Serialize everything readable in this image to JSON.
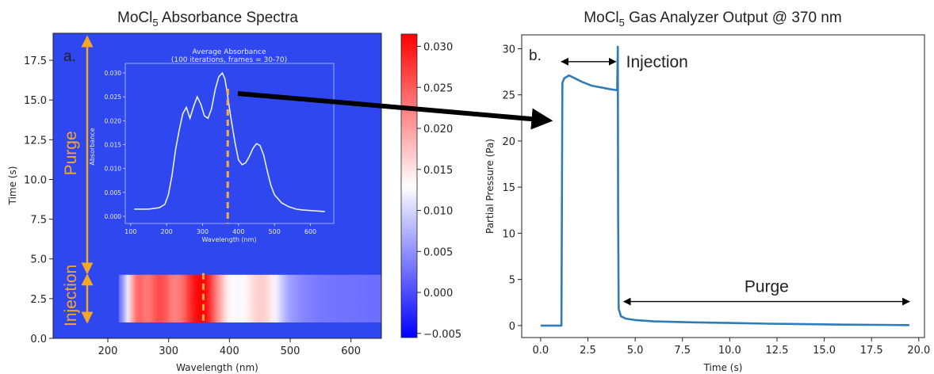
{
  "colors": {
    "background_blue": "#2f47ee",
    "colormap": [
      "#0000ff",
      "#ffffff",
      "#ff0000"
    ],
    "inset_line": "#e9efff",
    "marker": "#f5b041",
    "purge_annotation": "#f5a623",
    "series_b": "#2f7db8",
    "arrow": "#000000"
  },
  "annotations": {
    "big_arrow": "from panel a dashed marker to panel b injection onset"
  },
  "chart_data": [
    {
      "type": "heatmap",
      "panel_label": "a.",
      "title_prefix": "MoCl",
      "title_sub": "5",
      "title_suffix": " Absorbance Spectra",
      "xlabel": "Wavelength (nm)",
      "ylabel": "Time (s)",
      "xlim": [
        110,
        650
      ],
      "ylim": [
        0,
        19.2
      ],
      "xticks": [
        "200",
        "300",
        "400",
        "500",
        "600"
      ],
      "yticks": [
        "0.0",
        "2.5",
        "5.0",
        "7.5",
        "10.0",
        "12.5",
        "15.0",
        "17.5"
      ],
      "colorbar": {
        "range": [
          -0.0055,
          0.0315
        ],
        "ticks": [
          "−0.005",
          "0.000",
          "0.005",
          "0.010",
          "0.015",
          "0.020",
          "0.025",
          "0.030"
        ]
      },
      "bands": [
        {
          "label": "Purge",
          "y0": 4.1,
          "y1": 19.2
        },
        {
          "label": "Injection",
          "y0": 1.0,
          "y1": 4.0
        }
      ],
      "injection_band": {
        "x0": 218,
        "x1": 650,
        "y0": 1.0,
        "y1": 4.0
      },
      "marker_wavelength": 357,
      "inset": {
        "title": "Average Absorbance",
        "subtitle": "(100 iterations, frames = 30-70)",
        "xlabel": "Wavelength (nm)",
        "ylabel": "Absorbance",
        "xlim": [
          85,
          665
        ],
        "ylim": [
          -0.0015,
          0.032
        ],
        "xticks": [
          "100",
          "200",
          "300",
          "400",
          "500",
          "600"
        ],
        "yticks": [
          "0.000",
          "0.005",
          "0.010",
          "0.015",
          "0.020",
          "0.025",
          "0.030"
        ],
        "marker_wavelength": 370,
        "x": [
          110,
          150,
          180,
          195,
          205,
          215,
          225,
          235,
          245,
          255,
          265,
          275,
          285,
          295,
          305,
          315,
          325,
          335,
          345,
          355,
          362,
          368,
          372,
          380,
          390,
          400,
          410,
          420,
          430,
          440,
          450,
          460,
          470,
          480,
          490,
          500,
          520,
          540,
          560,
          580,
          600,
          620,
          640
        ],
        "y": [
          0.0015,
          0.0015,
          0.0018,
          0.0025,
          0.0045,
          0.0085,
          0.014,
          0.018,
          0.0215,
          0.0228,
          0.0205,
          0.023,
          0.025,
          0.0235,
          0.021,
          0.0205,
          0.0225,
          0.0265,
          0.0292,
          0.03,
          0.0288,
          0.0262,
          0.024,
          0.02,
          0.0155,
          0.0118,
          0.0108,
          0.0112,
          0.0125,
          0.0142,
          0.0152,
          0.0148,
          0.0128,
          0.0095,
          0.0065,
          0.0045,
          0.0028,
          0.002,
          0.0015,
          0.0013,
          0.0012,
          0.0011,
          0.001
        ]
      }
    },
    {
      "type": "line",
      "panel_label": "b.",
      "title_prefix": "MoCl",
      "title_sub": "5",
      "title_suffix": " Gas Analyzer Output @ 370 nm",
      "xlabel": "Time (s)",
      "ylabel": "Partial Pressure (Pa)",
      "xlim": [
        -1.0,
        20.3
      ],
      "ylim": [
        -1.3,
        31.5
      ],
      "xticks": [
        "0.0",
        "2.5",
        "5.0",
        "7.5",
        "10.0",
        "12.5",
        "15.0",
        "17.5",
        "20.0"
      ],
      "yticks": [
        "0",
        "5",
        "10",
        "15",
        "20",
        "25",
        "30"
      ],
      "grid": false,
      "series": [
        {
          "x": [
            0.0,
            1.1,
            1.15,
            1.25,
            1.5,
            1.8,
            2.2,
            2.7,
            3.2,
            3.7,
            4.05,
            4.08,
            4.1,
            4.13,
            4.25,
            4.5,
            5.0,
            6.0,
            8.0,
            10.0,
            12.0,
            14.0,
            16.0,
            18.0,
            19.5
          ],
          "y": [
            0.0,
            0.0,
            26.3,
            26.8,
            27.1,
            26.8,
            26.4,
            26.0,
            25.8,
            25.6,
            25.5,
            30.2,
            12.0,
            1.8,
            1.0,
            0.75,
            0.6,
            0.45,
            0.35,
            0.28,
            0.2,
            0.15,
            0.1,
            0.07,
            0.05
          ]
        }
      ],
      "annotations": [
        {
          "text": "Injection",
          "arrow_from": 1.1,
          "arrow_to": 4.1,
          "at_y": 28.6
        },
        {
          "text": "Purge",
          "arrow_from": 4.4,
          "arrow_to": 19.5,
          "at_y": 2.6
        }
      ]
    }
  ]
}
